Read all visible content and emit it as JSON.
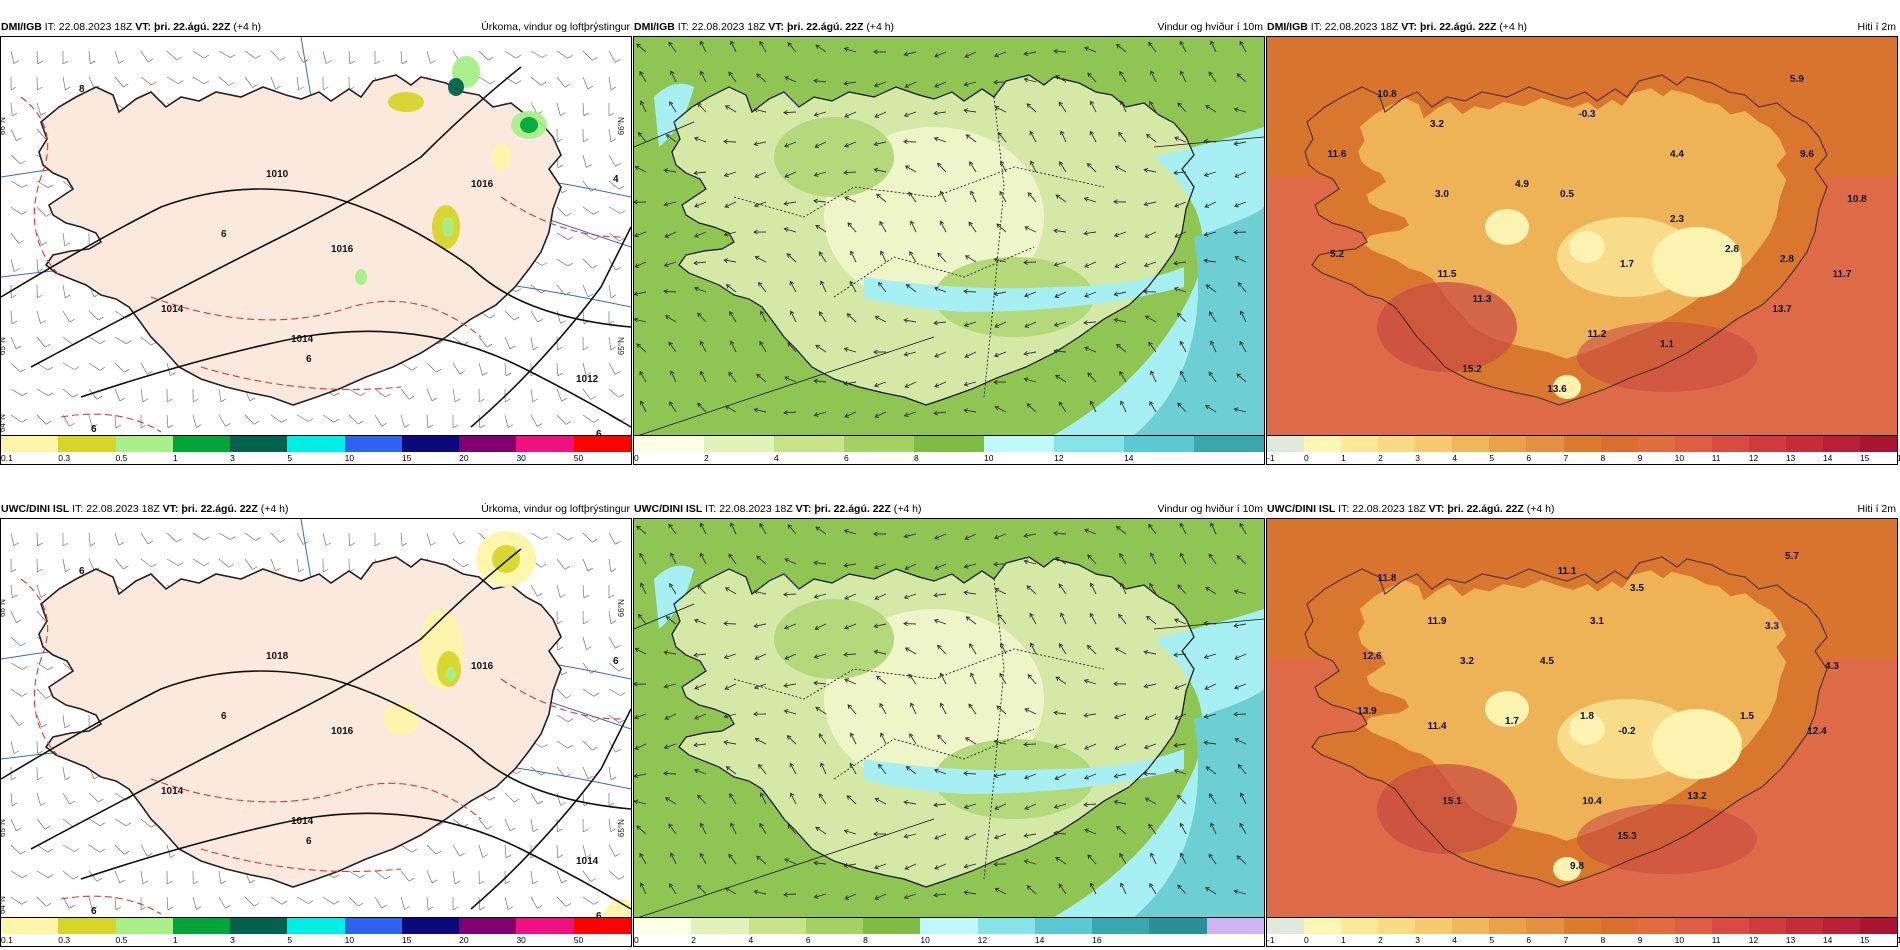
{
  "panels": [
    {
      "id": "dmi-precip",
      "header": {
        "model": "DMI/IGB",
        "it_label": "IT:",
        "it_value": "22.08.2023 18Z",
        "vt_label": "VT:",
        "vt_value": "þri. 22.ágú. 22Z",
        "lead": "(+4 h)",
        "title": "Úrkoma, vindur og loftþrýstingur"
      },
      "scale": {
        "colors": [
          "#fdf6a8",
          "#d7d52a",
          "#a8ef88",
          "#00a63a",
          "#03624b",
          "#00eee6",
          "#2e63f2",
          "#0b0a7a",
          "#800070",
          "#ee117f",
          "#ff0000"
        ],
        "ticks": [
          "0.1",
          "0.3",
          "0.5",
          "1",
          "3",
          "5",
          "10",
          "15",
          "20",
          "30",
          "50"
        ]
      },
      "map": {
        "land": "#fbe9de",
        "sea": "#ffffff",
        "coast": "#222222",
        "labels": [
          "1016",
          "1016",
          "1014",
          "1014",
          "1012",
          "1010",
          "8",
          "6",
          "6",
          "6",
          "4",
          "6"
        ],
        "lat_labels": [
          "66°N",
          "65°N",
          "64°N",
          "66°N",
          "65°N"
        ]
      }
    },
    {
      "id": "dmi-wind",
      "header": {
        "model": "DMI/IGB",
        "it_label": "IT:",
        "it_value": "22.08.2023 18Z",
        "vt_label": "VT:",
        "vt_value": "þri. 22.ágú. 22Z",
        "lead": "(+4 h)",
        "title": "Vindur og hviður í 10m"
      },
      "scale": {
        "colors": [
          "#fbfde5",
          "#e2f2b8",
          "#c6e58a",
          "#a4d162",
          "#80bb44",
          "#bff9fb",
          "#86e3e8",
          "#5ac9d1",
          "#3aa6ae"
        ],
        "ticks": [
          "0",
          "2",
          "4",
          "6",
          "8",
          "10",
          "12",
          "14"
        ]
      },
      "map": {
        "land": "#d4e9a5",
        "sea": "#8fc552",
        "coast": "#111111"
      }
    },
    {
      "id": "dmi-temp",
      "header": {
        "model": "DMI/IGB",
        "it_label": "IT:",
        "it_value": "22.08.2023 18Z",
        "vt_label": "VT:",
        "vt_value": "þri. 22.ágú. 22Z",
        "lead": "(+4 h)",
        "title": "Hiti í 2m"
      },
      "scale": {
        "colors": [
          "#dfe8dc",
          "#fdf7b5",
          "#fbe99a",
          "#f8da84",
          "#f5c96e",
          "#efb75b",
          "#e9a24a",
          "#e39040",
          "#db7b2e",
          "#d86f30",
          "#e06c3f",
          "#dd5e44",
          "#d84a42",
          "#cf3a3c",
          "#c52c3a",
          "#b91f36",
          "#a71532"
        ],
        "ticks": [
          "-1",
          "0",
          "1",
          "2",
          "3",
          "4",
          "5",
          "6",
          "7",
          "8",
          "9",
          "10",
          "11",
          "12",
          "13",
          "14",
          "15",
          "16"
        ]
      },
      "map": {
        "land": "#eeb257",
        "sea": "#df6a48",
        "coast": "#4a3012",
        "values": [
          "10.8",
          "3.2",
          "-0.3",
          "5.9",
          "11.6",
          "4.4",
          "9.6",
          "4.9",
          "3.0",
          "0.5",
          "10.8",
          "2.3",
          "5.2",
          "2.8",
          "2.8",
          "11.5",
          "1.7",
          "11.7",
          "11.3",
          "13.7",
          "11.2",
          "1.1",
          "15.2",
          "13.6"
        ]
      }
    },
    {
      "id": "uwc-precip",
      "header": {
        "model": "UWC/DINI ISL",
        "it_label": "IT:",
        "it_value": "22.08.2023 18Z",
        "vt_label": "VT:",
        "vt_value": "þri. 22.ágú. 22Z",
        "lead": "(+4 h)",
        "title": "Úrkoma, vindur og loftþrýstingur"
      },
      "scale": {
        "colors": [
          "#fdf6a8",
          "#d7d52a",
          "#a8ef88",
          "#00a63a",
          "#03624b",
          "#00eee6",
          "#2e63f2",
          "#0b0a7a",
          "#800070",
          "#ee117f",
          "#ff0000"
        ],
        "ticks": [
          "0.1",
          "0.3",
          "0.5",
          "1",
          "3",
          "5",
          "10",
          "15",
          "20",
          "30",
          "50"
        ]
      },
      "map": {
        "land": "#fbe9de",
        "sea": "#ffffff",
        "coast": "#222222",
        "labels": [
          "1016",
          "1016",
          "1014",
          "1014",
          "1014",
          "1018",
          "6",
          "6",
          "6",
          "6",
          "6",
          "6"
        ],
        "lat_labels": [
          "66°N",
          "65°N",
          "64°N",
          "66°N",
          "65°N"
        ]
      }
    },
    {
      "id": "uwc-wind",
      "header": {
        "model": "UWC/DINI ISL",
        "it_label": "IT:",
        "it_value": "22.08.2023 18Z",
        "vt_label": "VT:",
        "vt_value": "þri. 22.ágú. 22Z",
        "lead": "(+4 h)",
        "title": "Vindur og hviður í 10m"
      },
      "scale": {
        "colors": [
          "#fbfde5",
          "#e2f2b8",
          "#c6e58a",
          "#a4d162",
          "#80bb44",
          "#bff9fb",
          "#86e3e8",
          "#5ac9d1",
          "#3aa6ae",
          "#2b8f96",
          "#cdb5f3"
        ],
        "ticks": [
          "0",
          "2",
          "4",
          "6",
          "8",
          "10",
          "12",
          "14",
          "16"
        ]
      },
      "map": {
        "land": "#d4e9a5",
        "sea": "#8fc552",
        "coast": "#111111"
      }
    },
    {
      "id": "uwc-temp",
      "header": {
        "model": "UWC/DINI ISL",
        "it_label": "IT:",
        "it_value": "22.08.2023 18Z",
        "vt_label": "VT:",
        "vt_value": "þri. 22.ágú. 22Z",
        "lead": "(+4 h)",
        "title": "Hiti í 2m"
      },
      "scale": {
        "colors": [
          "#dfe8dc",
          "#fdf7b5",
          "#fbe99a",
          "#f8da84",
          "#f5c96e",
          "#efb75b",
          "#e9a24a",
          "#e39040",
          "#db7b2e",
          "#d86f30",
          "#e06c3f",
          "#dd5e44",
          "#d84a42",
          "#cf3a3c",
          "#c52c3a",
          "#b91f36",
          "#a71532"
        ],
        "ticks": [
          "-1",
          "0",
          "1",
          "2",
          "3",
          "4",
          "5",
          "6",
          "7",
          "8",
          "9",
          "10",
          "11",
          "12",
          "13",
          "14",
          "15",
          "16"
        ]
      },
      "map": {
        "land": "#eeb257",
        "sea": "#df6a48",
        "coast": "#4a3012",
        "values": [
          "5.7",
          "11.8",
          "11.1",
          "3.5",
          "11.9",
          "3.1",
          "3.3",
          "12.6",
          "3.2",
          "4.5",
          "4.3",
          "13.9",
          "11.4",
          "1.7",
          "1.8",
          "-0.2",
          "1.5",
          "12.4",
          "15.1",
          "10.4",
          "13.2",
          "15.3",
          "9.8"
        ]
      }
    }
  ]
}
